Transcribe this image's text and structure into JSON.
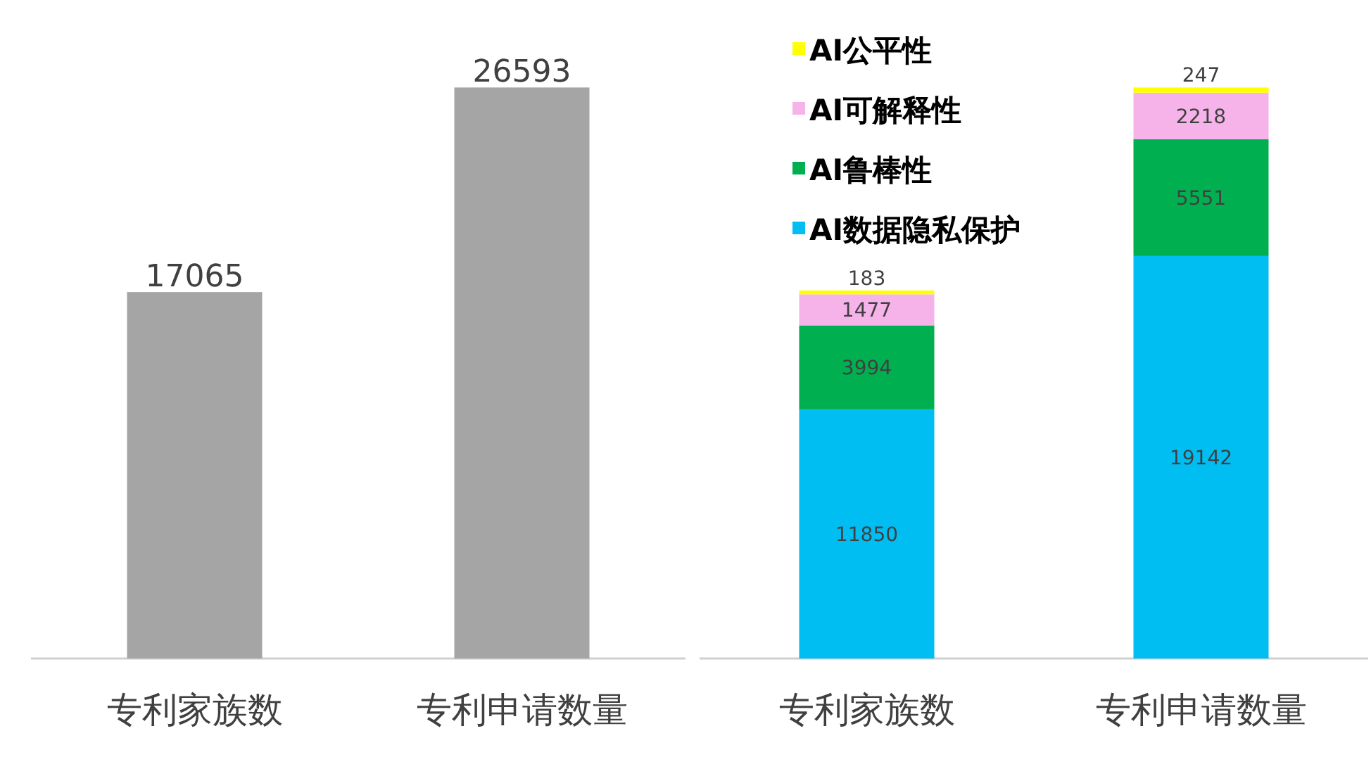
{
  "chart_data": [
    {
      "type": "bar",
      "categories": [
        "专利家族数",
        "专利申请数量"
      ],
      "values": [
        17065,
        26593
      ],
      "color": "#a5a5a5",
      "data_labels": true,
      "tick_labels": "x",
      "legend": false
    },
    {
      "type": "bar",
      "categories": [
        "专利家族数",
        "专利申请数量"
      ],
      "stacked": true,
      "data_labels": true,
      "tick_labels": "x",
      "legend": "top left",
      "series": [
        {
          "name": "AI数据隐私保护",
          "color": "#00bdf2",
          "values": [
            11850,
            19142
          ]
        },
        {
          "name": "AI鲁棒性",
          "color": "#00b050",
          "values": [
            3994,
            5551
          ]
        },
        {
          "name": "AI可解释性",
          "color": "#f6b3ea",
          "values": [
            1477,
            2218
          ]
        },
        {
          "name": "AI公平性",
          "color": "#ffff00",
          "values": [
            183,
            247
          ]
        }
      ]
    }
  ]
}
